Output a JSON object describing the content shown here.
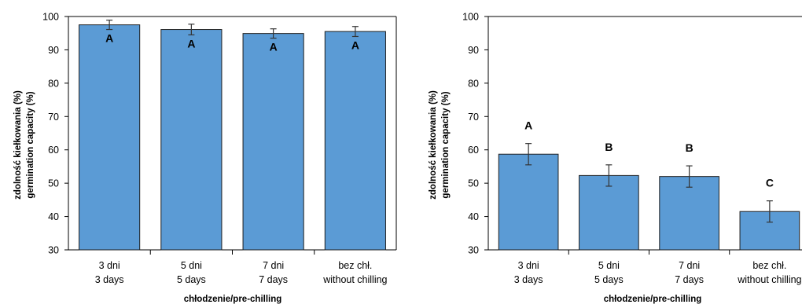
{
  "chart_data": [
    {
      "type": "bar",
      "categories": [
        [
          "3 dni",
          "3 days"
        ],
        [
          "5 dni",
          "5 days"
        ],
        [
          "7 dni",
          "7 days"
        ],
        [
          "bez chł.",
          "without chilling"
        ]
      ],
      "values": [
        97.5,
        96.1,
        94.9,
        95.5
      ],
      "errors": [
        1.4,
        1.6,
        1.4,
        1.5
      ],
      "letters": [
        "A",
        "A",
        "A",
        "A"
      ],
      "xlabel": "chłodzenie/pre-chilling",
      "ylabel": [
        "zdolność kiełkowania (%)",
        "germination capacity (%)"
      ],
      "ylim": [
        30,
        100
      ],
      "yticks": [
        30,
        40,
        50,
        60,
        70,
        80,
        90,
        100
      ],
      "letter_placement": "inside-top",
      "grid": false,
      "legend": "none",
      "bar_color": "#5b9bd5",
      "bar_edge_color": "#1f1f1f"
    },
    {
      "type": "bar",
      "categories": [
        [
          "3 dni",
          "3 days"
        ],
        [
          "5 dni",
          "5 days"
        ],
        [
          "7 dni",
          "7 days"
        ],
        [
          "bez chł.",
          "without chilling"
        ]
      ],
      "values": [
        58.7,
        52.3,
        52.0,
        41.5
      ],
      "errors": [
        3.2,
        3.2,
        3.2,
        3.2
      ],
      "letters": [
        "A",
        "B",
        "B",
        "C"
      ],
      "xlabel": "chłodzenie/pre-chilling",
      "ylabel": [
        "zdolność kiełkowania (%)",
        "germination capacity (%)"
      ],
      "ylim": [
        30,
        100
      ],
      "yticks": [
        30,
        40,
        50,
        60,
        70,
        80,
        90,
        100
      ],
      "letter_placement": "above",
      "grid": false,
      "legend": "none",
      "bar_color": "#5b9bd5",
      "bar_edge_color": "#1f1f1f"
    }
  ]
}
